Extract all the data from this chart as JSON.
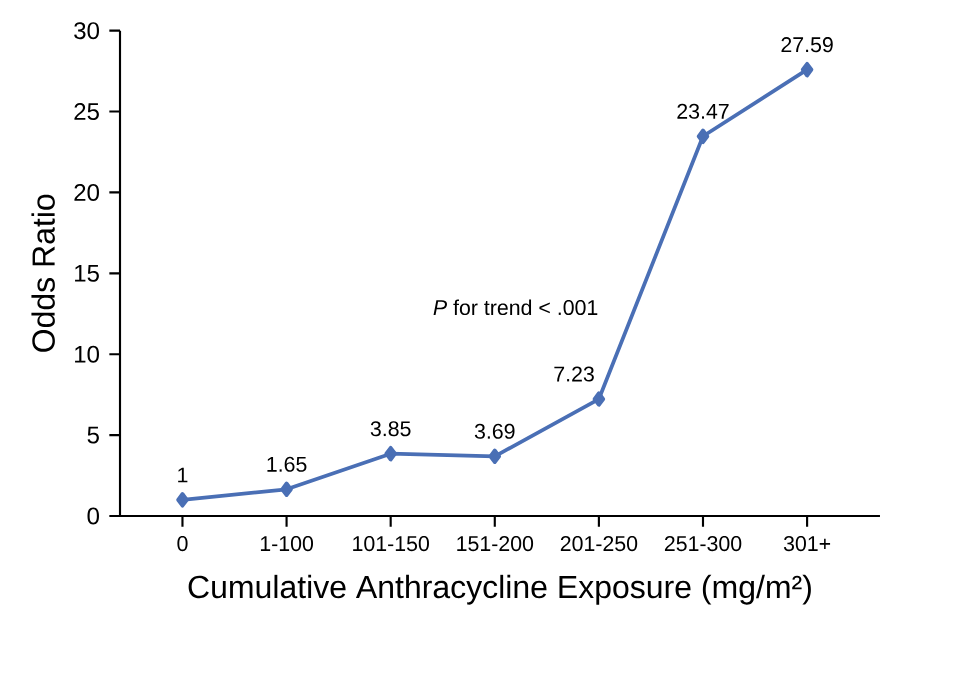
{
  "chart_data": {
    "type": "line",
    "xlabel": "Cumulative Anthracycline Exposure (mg/m²)",
    "ylabel": "Odds Ratio",
    "categories": [
      "0",
      "1-100",
      "101-150",
      "151-200",
      "201-250",
      "251-300",
      "301+"
    ],
    "values": [
      1,
      1.65,
      3.85,
      3.69,
      7.23,
      23.47,
      27.59
    ],
    "value_labels": [
      "1",
      "1.65",
      "3.85",
      "3.69",
      "7.23",
      "23.47",
      "27.59"
    ],
    "color": "#4a6fb5",
    "marker": "diamond",
    "line_style": "solid",
    "ylim": [
      0,
      30
    ],
    "yticks": [
      0,
      5,
      10,
      15,
      20,
      25,
      30
    ],
    "grid": false,
    "annotations": [
      "*P* for trend < .001"
    ]
  }
}
